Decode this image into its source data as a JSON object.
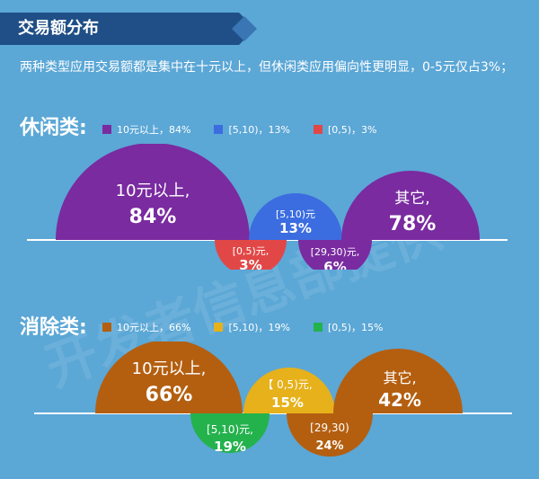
{
  "header": {
    "title": "交易额分布"
  },
  "intro": "两种类型应用交易额都是集中在十元以上，但休闲类应用偏向性更明显，0-5元仅占3%；",
  "watermark": "开发者信息部提供",
  "sections": {
    "casual": {
      "title": "休闲类:",
      "legend": [
        {
          "label": "10元以上，84%",
          "color": "#7a2ba0"
        },
        {
          "label": "[5,10)，13%",
          "color": "#3b6de0"
        },
        {
          "label": "[0,5)，3%",
          "color": "#e24747"
        }
      ]
    },
    "elimination": {
      "title": "消除类:",
      "legend": [
        {
          "label": "10元以上，66%",
          "color": "#b45f10"
        },
        {
          "label": "[5,10)，19%",
          "color": "#e6b11a"
        },
        {
          "label": "[0,5)，15%",
          "color": "#24b24d"
        }
      ]
    }
  },
  "chart_data": [
    {
      "type": "bubble-semicircle",
      "title": "休闲类:",
      "series": [
        {
          "label": "10元以上,",
          "value": "84%",
          "pct": 84,
          "color": "#7a2ba0",
          "side": "above"
        },
        {
          "label": "[5,10)元",
          "value": "13%",
          "pct": 13,
          "color": "#3b6de0",
          "side": "above"
        },
        {
          "label": "[0,5)元,",
          "value": "3%",
          "pct": 3,
          "color": "#e24747",
          "side": "below"
        },
        {
          "label": "[29,30)元,",
          "value": "6%",
          "pct": 6,
          "color": "#7a2ba0",
          "side": "below"
        },
        {
          "label": "其它,",
          "value": "78%",
          "pct": 78,
          "color": "#7a2ba0",
          "side": "above"
        }
      ]
    },
    {
      "type": "bubble-semicircle",
      "title": "消除类:",
      "series": [
        {
          "label": "10元以上,",
          "value": "66%",
          "pct": 66,
          "color": "#b45f10",
          "side": "above"
        },
        {
          "label": "[5,10)元,",
          "value": "19%",
          "pct": 19,
          "color": "#24b24d",
          "side": "below"
        },
        {
          "label": "【 0,5)元,",
          "value": "15%",
          "pct": 15,
          "color": "#e6b11a",
          "side": "above"
        },
        {
          "label": "[29,30)",
          "value": "24%",
          "pct": 24,
          "color": "#b45f10",
          "side": "below"
        },
        {
          "label": "其它,",
          "value": "42%",
          "pct": 42,
          "color": "#b45f10",
          "side": "above"
        }
      ]
    }
  ]
}
